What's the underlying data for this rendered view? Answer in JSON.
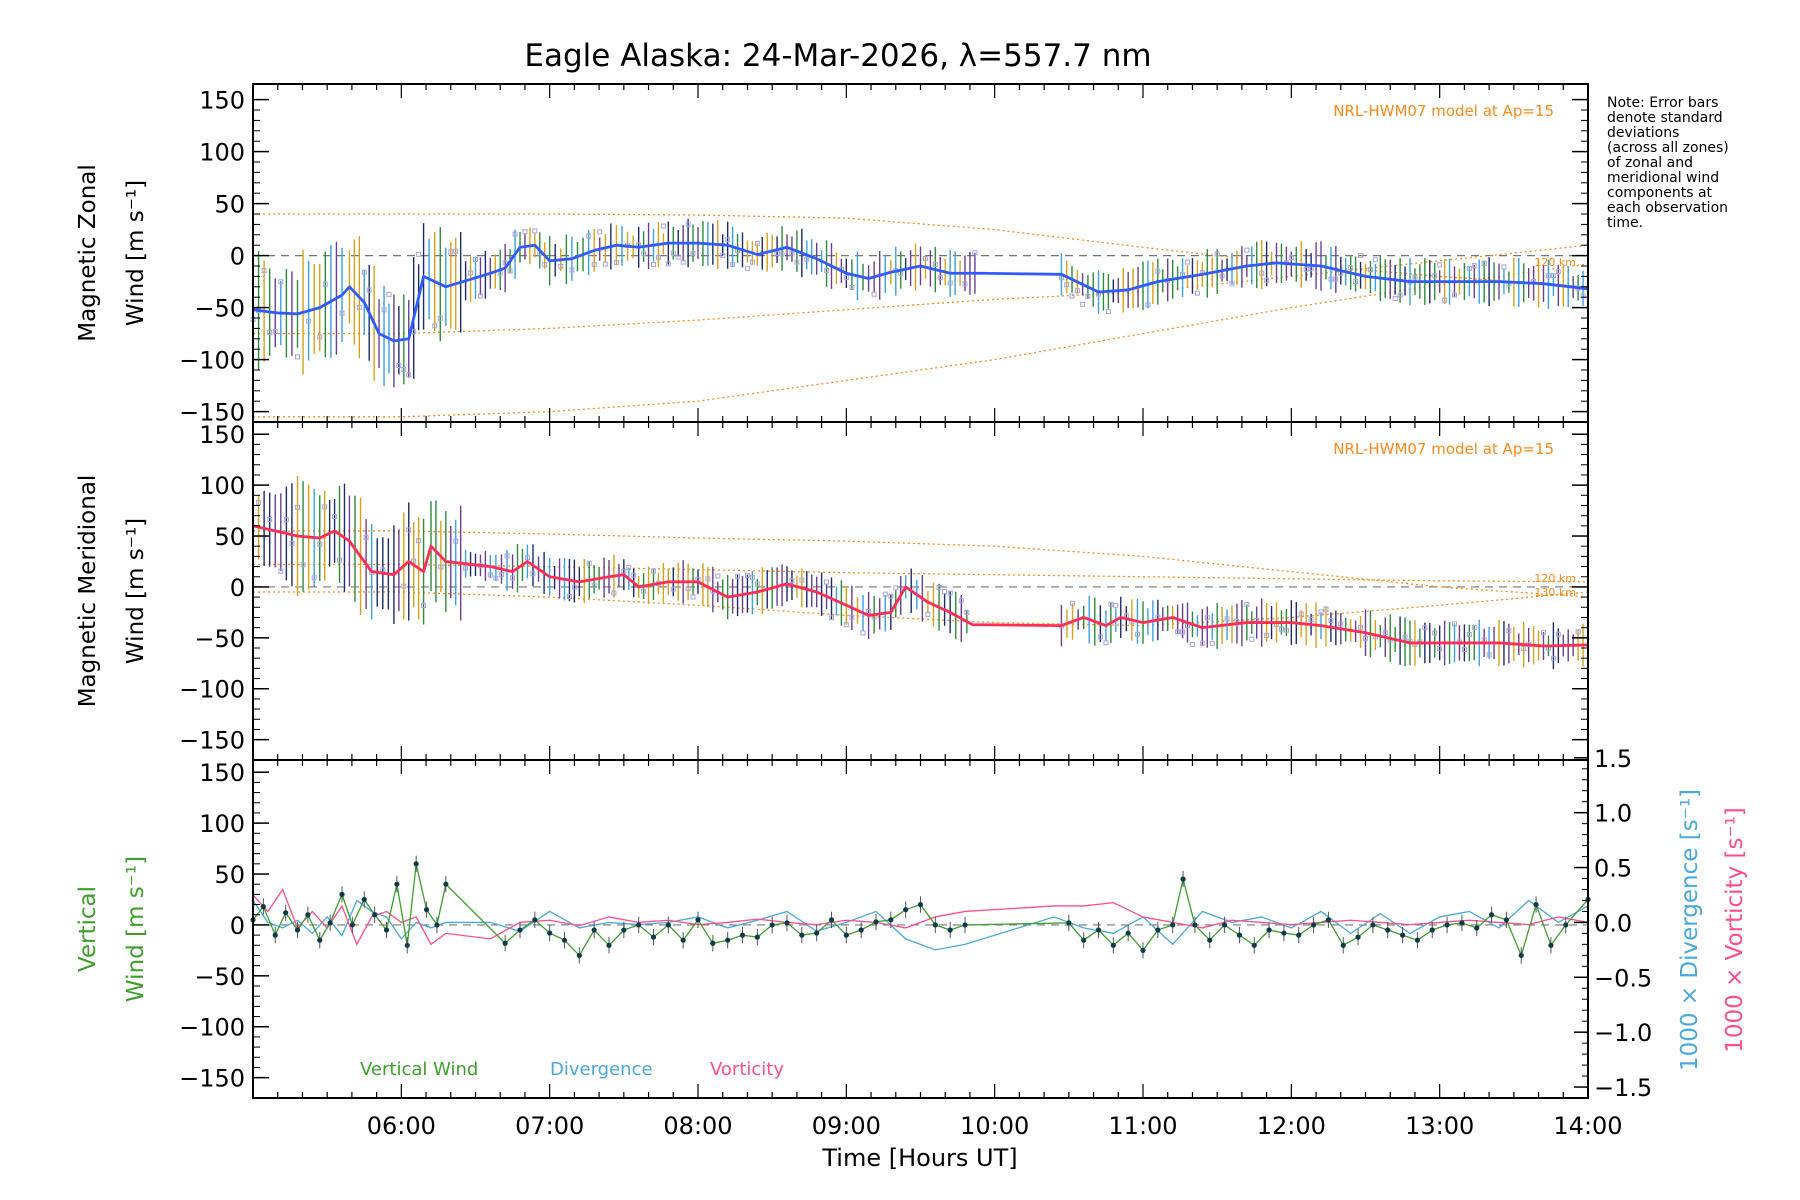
{
  "title": "Eagle Alaska: 24-Mar-2026, λ=557.7 nm",
  "note_lines": [
    "Note: Error bars",
    "denote standard",
    "deviations",
    "(across all zones)",
    "of zonal and",
    "meridional wind",
    "components at",
    "each observation",
    "time."
  ],
  "colors": {
    "zonal": "#2f5bff",
    "zonal_light": "#3aa0e8",
    "meridional": "#ff2e55",
    "vertical": "#3f9e2d",
    "divergence": "#4aa8dc",
    "vorticity": "#ff4f8b",
    "model": "#ff8a1c",
    "scatter": "#a8a4e0",
    "axis": "#000000"
  },
  "chart_data": [
    {
      "type": "line",
      "title": "Magnetic Zonal Wind",
      "ylabel_line1": "Magnetic Zonal",
      "ylabel_line2": "Wind [m s⁻¹]",
      "model_label": "NRL-HWM07 model at Ap=15",
      "altitude_labels": [
        "120 km"
      ],
      "xlim": [
        5.0,
        14.0
      ],
      "ylim": [
        -160,
        165
      ],
      "yticks": [
        -150,
        -100,
        -50,
        0,
        50,
        100,
        150
      ],
      "x": [
        5.0,
        5.15,
        5.3,
        5.45,
        5.6,
        5.65,
        5.75,
        5.85,
        5.95,
        6.05,
        6.15,
        6.3,
        6.6,
        6.7,
        6.8,
        6.9,
        7.0,
        7.15,
        7.3,
        7.45,
        7.6,
        7.8,
        8.0,
        8.2,
        8.4,
        8.6,
        8.8,
        9.0,
        9.15,
        9.3,
        9.5,
        9.7,
        9.9,
        10.45,
        10.7,
        10.9,
        11.1,
        11.4,
        11.7,
        11.9,
        12.2,
        12.5,
        12.8,
        13.1,
        13.4,
        13.7,
        14.0
      ],
      "values": [
        -52,
        -55,
        -56,
        -50,
        -38,
        -30,
        -45,
        -75,
        -82,
        -80,
        -20,
        -30,
        -17,
        -12,
        8,
        10,
        -5,
        -3,
        5,
        10,
        8,
        12,
        12,
        10,
        1,
        8,
        -3,
        -17,
        -22,
        -16,
        -10,
        -17,
        -17,
        -18,
        -35,
        -33,
        -25,
        -18,
        -10,
        -7,
        -10,
        -20,
        -25,
        -25,
        -25,
        -27,
        -32
      ],
      "model_curves": [
        {
          "x": [
            5.0,
            6.0,
            7.0,
            8.0,
            9.0,
            10.0,
            11.0,
            12.0,
            13.0,
            14.0
          ],
          "values": [
            40,
            40,
            40,
            39,
            36,
            25,
            8,
            -8,
            -20,
            -30
          ]
        },
        {
          "x": [
            5.0,
            6.0,
            7.0,
            8.0,
            9.0,
            10.0,
            11.0,
            12.0,
            13.0,
            14.0
          ],
          "values": [
            -75,
            -75,
            -70,
            -62,
            -52,
            -42,
            -35,
            -20,
            -5,
            10
          ]
        },
        {
          "x": [
            5.0,
            6.0,
            7.0,
            8.0,
            9.0,
            10.0,
            11.0,
            12.0,
            13.0,
            14.0
          ],
          "values": [
            -155,
            -155,
            -150,
            -140,
            -120,
            -100,
            -75,
            -50,
            -28,
            -8
          ]
        }
      ]
    },
    {
      "type": "line",
      "title": "Magnetic Meridional Wind",
      "ylabel_line1": "Magnetic Meridional",
      "ylabel_line2": "Wind [m s⁻¹]",
      "model_label": "NRL-HWM07 model at Ap=15",
      "altitude_labels": [
        "120 km",
        "130 km"
      ],
      "xlim": [
        5.0,
        14.0
      ],
      "ylim": [
        -170,
        162
      ],
      "yticks": [
        -150,
        -100,
        -50,
        0,
        50,
        100,
        150
      ],
      "x": [
        5.0,
        5.15,
        5.3,
        5.45,
        5.55,
        5.65,
        5.8,
        5.95,
        6.05,
        6.15,
        6.2,
        6.3,
        6.6,
        6.75,
        6.85,
        7.0,
        7.2,
        7.4,
        7.5,
        7.6,
        7.8,
        8.0,
        8.2,
        8.4,
        8.6,
        8.8,
        9.0,
        9.15,
        9.3,
        9.4,
        9.55,
        9.7,
        9.85,
        10.45,
        10.6,
        10.75,
        10.85,
        11.0,
        11.2,
        11.4,
        11.7,
        12.0,
        12.2,
        12.5,
        12.8,
        13.1,
        13.4,
        13.7,
        14.0
      ],
      "values": [
        60,
        55,
        50,
        48,
        55,
        45,
        15,
        12,
        25,
        15,
        40,
        25,
        20,
        15,
        25,
        10,
        5,
        10,
        12,
        0,
        5,
        5,
        -10,
        -5,
        3,
        -5,
        -18,
        -28,
        -25,
        0,
        -15,
        -25,
        -37,
        -38,
        -30,
        -38,
        -30,
        -35,
        -30,
        -40,
        -35,
        -35,
        -38,
        -45,
        -55,
        -55,
        -55,
        -58,
        -57
      ],
      "model_curves": [
        {
          "x": [
            5.0,
            6.0,
            7.0,
            8.0,
            9.0,
            10.0,
            11.0,
            12.0,
            13.0,
            14.0
          ],
          "values": [
            55,
            55,
            52,
            48,
            45,
            40,
            30,
            15,
            0,
            -10
          ]
        },
        {
          "x": [
            5.0,
            6.0,
            7.0,
            8.0,
            9.0,
            10.0,
            11.0,
            12.0,
            13.0,
            14.0
          ],
          "values": [
            22,
            22,
            20,
            17,
            14,
            12,
            10,
            8,
            6,
            5
          ]
        },
        {
          "x": [
            5.0,
            6.0,
            7.0,
            8.0,
            9.0,
            10.0,
            11.0,
            12.0,
            13.0,
            14.0
          ],
          "values": [
            -5,
            -5,
            -10,
            -18,
            -28,
            -35,
            -38,
            -30,
            -18,
            -5
          ]
        }
      ]
    },
    {
      "type": "line",
      "title": "Vertical Wind, Divergence, Vorticity",
      "ylabel_line1": "Vertical",
      "ylabel_line2": "Wind [m s⁻¹]",
      "right_label_divergence": "1000 × Divergence [s⁻¹]",
      "right_label_vorticity": "1000 × Vorticity [s⁻¹]",
      "legend": [
        "Vertical Wind",
        "Divergence",
        "Vorticity"
      ],
      "xlim": [
        5.0,
        14.0
      ],
      "ylim": [
        -170,
        162
      ],
      "yticks": [
        -150,
        -100,
        -50,
        0,
        50,
        100,
        150
      ],
      "y2lim": [
        -1.6,
        1.48
      ],
      "y2ticks": [
        -1.5,
        -1.0,
        -0.5,
        0.0,
        0.5,
        1.0,
        1.5
      ],
      "y2tick_labels": [
        "−1.5",
        "−1.0",
        "−0.5",
        "0.0",
        "0.5",
        "1.0",
        "1.5"
      ],
      "xticks": [
        6,
        7,
        8,
        9,
        10,
        11,
        12,
        13,
        14
      ],
      "xtick_labels": [
        "06:00",
        "07:00",
        "08:00",
        "09:00",
        "10:00",
        "11:00",
        "12:00",
        "13:00",
        "14:00"
      ],
      "xlabel": "Time [Hours UT]",
      "series": [
        {
          "name": "Vertical Wind",
          "x": [
            5.0,
            5.07,
            5.15,
            5.22,
            5.3,
            5.37,
            5.45,
            5.52,
            5.6,
            5.67,
            5.75,
            5.82,
            5.9,
            5.97,
            6.04,
            6.1,
            6.17,
            6.24,
            6.3,
            6.7,
            6.8,
            6.9,
            7.0,
            7.1,
            7.2,
            7.3,
            7.4,
            7.5,
            7.6,
            7.7,
            7.8,
            7.9,
            8.0,
            8.1,
            8.2,
            8.3,
            8.4,
            8.5,
            8.6,
            8.7,
            8.8,
            8.9,
            9.0,
            9.1,
            9.2,
            9.3,
            9.4,
            9.5,
            9.6,
            9.7,
            9.8,
            10.5,
            10.6,
            10.7,
            10.8,
            10.9,
            11.0,
            11.1,
            11.2,
            11.27,
            11.35,
            11.45,
            11.55,
            11.65,
            11.75,
            11.85,
            11.95,
            12.05,
            12.15,
            12.25,
            12.35,
            12.45,
            12.55,
            12.65,
            12.75,
            12.85,
            12.95,
            13.05,
            13.15,
            13.25,
            13.35,
            13.45,
            13.55,
            13.65,
            13.75,
            13.85,
            14.0
          ],
          "values": [
            5,
            18,
            -10,
            12,
            -5,
            10,
            -15,
            2,
            30,
            0,
            25,
            10,
            -5,
            40,
            -20,
            60,
            15,
            0,
            40,
            -18,
            -5,
            5,
            -8,
            -15,
            -30,
            -5,
            -20,
            -5,
            0,
            -12,
            0,
            -15,
            5,
            -18,
            -15,
            -10,
            -12,
            0,
            2,
            -10,
            -8,
            5,
            -10,
            -5,
            3,
            5,
            15,
            20,
            0,
            -5,
            0,
            2,
            -15,
            -5,
            -20,
            -8,
            -25,
            -5,
            0,
            45,
            0,
            -15,
            0,
            -10,
            -20,
            -5,
            -8,
            -10,
            0,
            5,
            -20,
            -12,
            0,
            -5,
            -10,
            -15,
            -5,
            0,
            2,
            -3,
            10,
            5,
            -30,
            20,
            -20,
            0,
            25
          ]
        },
        {
          "name": "Divergence",
          "x": [
            5.0,
            5.1,
            5.2,
            5.3,
            5.4,
            5.5,
            5.6,
            5.7,
            5.8,
            5.9,
            6.0,
            6.1,
            6.2,
            6.3,
            6.6,
            6.8,
            7.0,
            7.2,
            7.4,
            7.6,
            7.8,
            8.0,
            8.2,
            8.4,
            8.6,
            8.8,
            9.0,
            9.2,
            9.4,
            9.6,
            9.8,
            10.4,
            10.6,
            10.8,
            11.0,
            11.2,
            11.4,
            11.6,
            11.8,
            12.0,
            12.2,
            12.4,
            12.6,
            12.8,
            13.0,
            13.2,
            13.4,
            13.6,
            13.8,
            14.0
          ],
          "values": [
            0.2,
            0.0,
            -0.05,
            0.02,
            -0.1,
            0.05,
            -0.12,
            0.2,
            0.1,
            0.05,
            -0.15,
            0.0,
            -0.05,
            0.0,
            0.0,
            -0.08,
            0.1,
            -0.05,
            0.0,
            -0.02,
            0.0,
            0.05,
            -0.05,
            0.02,
            0.1,
            -0.08,
            0.0,
            0.1,
            -0.15,
            -0.25,
            -0.2,
            0.05,
            -0.05,
            -0.1,
            0.05,
            -0.2,
            0.1,
            0.0,
            0.05,
            -0.05,
            0.1,
            -0.1,
            0.08,
            -0.1,
            0.05,
            0.1,
            -0.05,
            0.2,
            0.0,
            0.15
          ]
        },
        {
          "name": "Vorticity",
          "x": [
            5.0,
            5.1,
            5.2,
            5.3,
            5.4,
            5.5,
            5.6,
            5.7,
            5.8,
            5.9,
            6.0,
            6.1,
            6.2,
            6.3,
            6.6,
            6.8,
            7.0,
            7.2,
            7.4,
            7.6,
            7.8,
            8.0,
            8.2,
            8.4,
            8.6,
            8.8,
            9.0,
            9.2,
            9.4,
            9.6,
            9.8,
            10.4,
            10.6,
            10.8,
            11.0,
            11.2,
            11.4,
            11.6,
            11.8,
            12.0,
            12.2,
            12.4,
            12.6,
            12.8,
            13.0,
            13.2,
            13.4,
            13.6,
            13.8,
            14.0
          ],
          "values": [
            0.25,
            0.1,
            0.3,
            -0.05,
            0.1,
            -0.05,
            0.15,
            -0.2,
            0.05,
            0.1,
            0.0,
            0.05,
            -0.2,
            -0.1,
            -0.15,
            0.0,
            0.02,
            -0.03,
            0.05,
            0.0,
            0.02,
            -0.02,
            0.0,
            0.03,
            0.0,
            -0.02,
            0.02,
            0.0,
            -0.05,
            0.05,
            0.1,
            0.15,
            0.15,
            0.18,
            0.05,
            0.0,
            -0.05,
            0.02,
            0.0,
            -0.02,
            0.0,
            0.02,
            0.0,
            -0.02,
            0.0,
            0.02,
            0.0,
            -0.02,
            0.05,
            0.0
          ]
        }
      ]
    }
  ]
}
